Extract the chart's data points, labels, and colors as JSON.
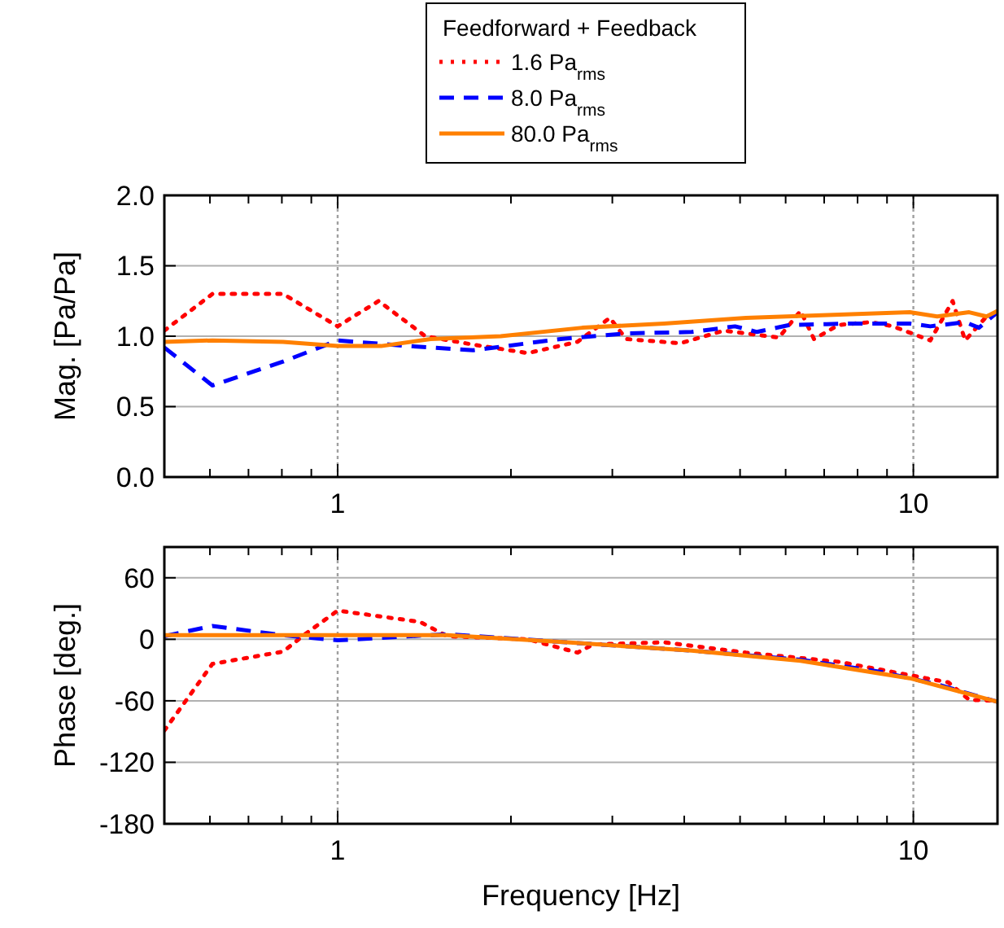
{
  "chart_data": [
    {
      "type": "line",
      "ylabel": "Mag. [Pa/Pa]",
      "legend_title": "Feedforward + Feedback",
      "legend": "top",
      "grid": true,
      "log": "x",
      "xlim": [
        0.5,
        14
      ],
      "xticks": [
        {
          "value": 0.5,
          "label": null
        },
        {
          "value": 0.6,
          "label": null
        },
        {
          "value": 0.7,
          "label": null
        },
        {
          "value": 0.8,
          "label": null
        },
        {
          "value": 0.9,
          "label": null
        },
        {
          "value": 1,
          "label": "1"
        },
        {
          "value": 2,
          "label": null
        },
        {
          "value": 3,
          "label": null
        },
        {
          "value": 4,
          "label": null
        },
        {
          "value": 5,
          "label": null
        },
        {
          "value": 6,
          "label": null
        },
        {
          "value": 7,
          "label": null
        },
        {
          "value": 8,
          "label": null
        },
        {
          "value": 9,
          "label": null
        },
        {
          "value": 10,
          "label": "10"
        }
      ],
      "ylim": [
        0,
        2
      ],
      "yticks": [
        {
          "value": 0,
          "label": "0.0"
        },
        {
          "value": 0.5,
          "label": "0.5"
        },
        {
          "value": 1,
          "label": "1.0"
        },
        {
          "value": 1.5,
          "label": "1.5"
        },
        {
          "value": 2,
          "label": "2.0"
        }
      ],
      "series": [
        {
          "name": "1.6 Pa$_{rms}$",
          "color": "#ff0000",
          "line_style": "dotted",
          "x": [
            0.5,
            0.606,
            0.804,
            1.0,
            1.178,
            1.42,
            1.72,
            2.14,
            2.61,
            2.97,
            3.17,
            3.94,
            4.69,
            5.84,
            6.37,
            6.72,
            7.42,
            8.44,
            9.22,
            10.7,
            11.7,
            12.3,
            13.4,
            14
          ],
          "values": [
            1.04,
            1.3,
            1.3,
            1.07,
            1.25,
            1.0,
            0.94,
            0.88,
            0.96,
            1.13,
            0.98,
            0.95,
            1.04,
            0.99,
            1.18,
            0.98,
            1.08,
            1.1,
            1.07,
            0.97,
            1.25,
            0.97,
            1.14,
            1.16
          ]
        },
        {
          "name": "8.0 Pa$_{rms}$",
          "color": "#0000ff",
          "line_style": "dashed",
          "x": [
            0.5,
            0.606,
            0.804,
            1.0,
            1.33,
            1.72,
            2.44,
            3.17,
            4.12,
            4.9,
            5.35,
            6.1,
            7.9,
            9.86,
            10.7,
            12.3,
            13.0,
            14
          ],
          "values": [
            0.92,
            0.65,
            0.82,
            0.97,
            0.93,
            0.9,
            0.98,
            1.02,
            1.03,
            1.07,
            1.03,
            1.08,
            1.09,
            1.09,
            1.07,
            1.1,
            1.06,
            1.17
          ]
        },
        {
          "name": "80.0 Pa$_{rms}$",
          "color": "#ff8000",
          "line_style": "solid",
          "x": [
            0.5,
            0.606,
            0.804,
            1.0,
            1.19,
            1.45,
            1.92,
            2.66,
            3.69,
            5.12,
            7.1,
            9.86,
            11.0,
            12.5,
            13.4,
            14
          ],
          "values": [
            0.96,
            0.97,
            0.96,
            0.93,
            0.93,
            0.98,
            1.0,
            1.06,
            1.09,
            1.13,
            1.15,
            1.17,
            1.14,
            1.17,
            1.14,
            1.18
          ]
        }
      ]
    },
    {
      "type": "line",
      "xlabel": "Frequency [Hz]",
      "ylabel": "Phase [deg.]",
      "grid": true,
      "log": "x",
      "xlim": [
        0.5,
        14
      ],
      "xticks": [
        {
          "value": 0.5,
          "label": null
        },
        {
          "value": 0.6,
          "label": null
        },
        {
          "value": 0.7,
          "label": null
        },
        {
          "value": 0.8,
          "label": null
        },
        {
          "value": 0.9,
          "label": null
        },
        {
          "value": 1,
          "label": "1"
        },
        {
          "value": 2,
          "label": null
        },
        {
          "value": 3,
          "label": null
        },
        {
          "value": 4,
          "label": null
        },
        {
          "value": 5,
          "label": null
        },
        {
          "value": 6,
          "label": null
        },
        {
          "value": 7,
          "label": null
        },
        {
          "value": 8,
          "label": null
        },
        {
          "value": 9,
          "label": null
        },
        {
          "value": 10,
          "label": "10"
        }
      ],
      "ylim": [
        -180,
        90
      ],
      "yticks": [
        -180,
        -120,
        -60,
        0,
        60
      ],
      "series": [
        {
          "color": "#ff0000",
          "line_style": "dotted",
          "x": [
            0.5,
            0.606,
            0.804,
            0.878,
            1.0,
            1.39,
            1.55,
            2.14,
            2.61,
            2.78,
            3.69,
            5.12,
            7.42,
            9.86,
            11.5,
            12.5,
            14
          ],
          "values": [
            -89,
            -24,
            -12,
            5,
            28,
            17,
            3,
            0,
            -13,
            -5,
            -3,
            -13,
            -22,
            -35,
            -42,
            -59,
            -60
          ]
        },
        {
          "color": "#0000ff",
          "line_style": "dashed",
          "x": [
            0.5,
            0.606,
            0.804,
            1.0,
            1.55,
            2.5,
            4.12,
            6.37,
            8.83,
            11.0,
            14
          ],
          "values": [
            3,
            13,
            4,
            -1,
            5,
            -3,
            -11,
            -20,
            -32,
            -44,
            -61
          ]
        },
        {
          "color": "#ff8000",
          "line_style": "solid",
          "x": [
            0.5,
            1.0,
            1.55,
            2.5,
            4.12,
            6.37,
            9.86,
            14
          ],
          "values": [
            4,
            4,
            4,
            -3,
            -11,
            -21,
            -38,
            -61
          ]
        }
      ]
    }
  ]
}
